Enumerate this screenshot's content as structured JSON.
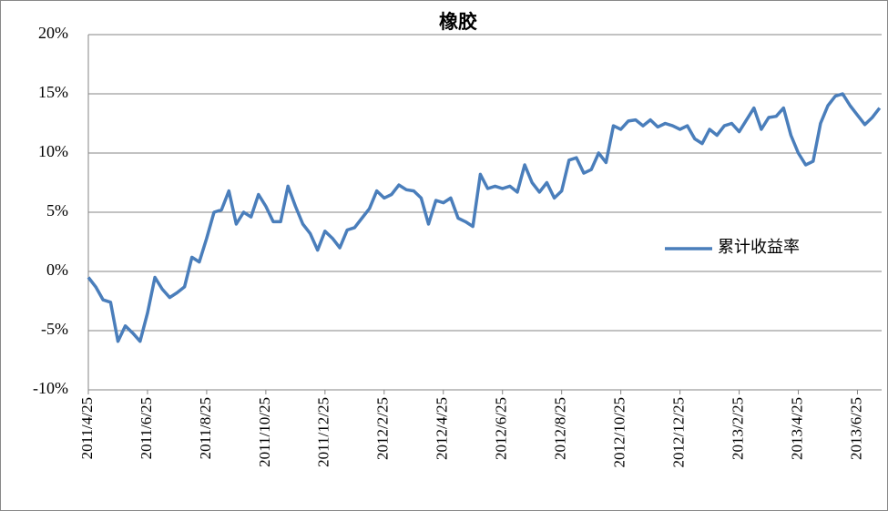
{
  "chart_data": {
    "type": "line",
    "title": "橡胶",
    "categories": [
      "2011/4/25",
      null,
      null,
      null,
      null,
      null,
      null,
      null,
      "2011/6/25",
      null,
      null,
      null,
      null,
      null,
      null,
      null,
      "2011/8/25",
      null,
      null,
      null,
      null,
      null,
      null,
      null,
      "2011/10/25",
      null,
      null,
      null,
      null,
      null,
      null,
      null,
      "2011/12/25",
      null,
      null,
      null,
      null,
      null,
      null,
      null,
      "2012/2/25",
      null,
      null,
      null,
      null,
      null,
      null,
      null,
      "2012/4/25",
      null,
      null,
      null,
      null,
      null,
      null,
      null,
      "2012/6/25",
      null,
      null,
      null,
      null,
      null,
      null,
      null,
      "2012/8/25",
      null,
      null,
      null,
      null,
      null,
      null,
      null,
      "2012/10/25",
      null,
      null,
      null,
      null,
      null,
      null,
      null,
      "2012/12/25",
      null,
      null,
      null,
      null,
      null,
      null,
      null,
      "2013/2/25",
      null,
      null,
      null,
      null,
      null,
      null,
      null,
      "2013/4/25",
      null,
      null,
      null,
      null,
      null,
      null,
      null,
      "2013/6/25",
      null,
      null,
      null
    ],
    "series": [
      {
        "name": "累计收益率",
        "color": "#4a7ebb",
        "values": [
          -0.5,
          -1.3,
          -2.4,
          -2.6,
          -5.9,
          -4.6,
          -5.2,
          -5.9,
          -3.5,
          -0.5,
          -1.5,
          -2.2,
          -1.8,
          -1.3,
          1.2,
          0.8,
          2.8,
          5.0,
          5.2,
          6.8,
          4.0,
          5.0,
          4.6,
          6.5,
          5.5,
          4.2,
          4.2,
          7.2,
          5.5,
          4.0,
          3.2,
          1.8,
          3.4,
          2.8,
          2.0,
          3.5,
          3.7,
          4.5,
          5.3,
          6.8,
          6.2,
          6.5,
          7.3,
          6.9,
          6.8,
          6.2,
          4.0,
          6.0,
          5.8,
          6.2,
          4.5,
          4.2,
          3.8,
          8.2,
          7.0,
          7.2,
          7.0,
          7.2,
          6.7,
          9.0,
          7.5,
          6.7,
          7.5,
          6.2,
          6.8,
          9.4,
          9.6,
          8.3,
          8.6,
          10.0,
          9.2,
          12.3,
          12.0,
          12.7,
          12.8,
          12.3,
          12.8,
          12.2,
          12.5,
          12.3,
          12.0,
          12.3,
          11.2,
          10.8,
          12.0,
          11.5,
          12.3,
          12.5,
          11.8,
          12.8,
          13.8,
          12.0,
          13.0,
          13.1,
          13.8,
          11.5,
          10.0,
          9.0,
          9.3,
          12.5,
          14.0,
          14.8,
          15.0,
          14.0,
          13.2,
          12.4,
          13.0,
          13.8
        ]
      }
    ],
    "ylim": [
      -10,
      20
    ],
    "yticks": [
      {
        "value": -10,
        "label": "-10%"
      },
      {
        "value": -5,
        "label": "-5%"
      },
      {
        "value": 0,
        "label": "0%"
      },
      {
        "value": 5,
        "label": "5%"
      },
      {
        "value": 10,
        "label": "10%"
      },
      {
        "value": 15,
        "label": "15%"
      },
      {
        "value": 20,
        "label": "20%"
      }
    ],
    "grid": true,
    "legend": "right"
  }
}
